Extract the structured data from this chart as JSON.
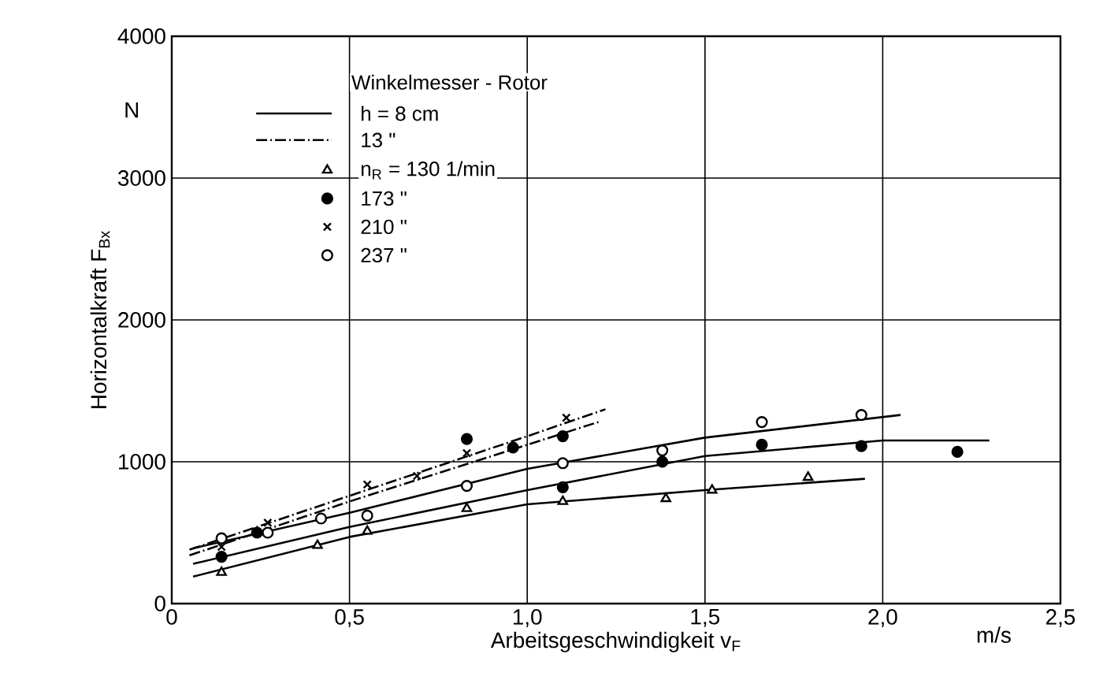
{
  "chart_data": {
    "type": "scatter",
    "xlabel": "Arbeitsgeschwindigkeit v$_{F}$",
    "ylabel": "Horizontalkraft F$_{Bx}$",
    "legend_title": "Winkelmesser - Rotor",
    "xlim": [
      0,
      2.5
    ],
    "ylim": [
      0,
      4000
    ],
    "xticks": [
      0,
      {
        "value": 0.5,
        "label": "0,5"
      },
      {
        "value": 1.0,
        "label": "1,0"
      },
      {
        "value": 1.5,
        "label": "1,5"
      },
      {
        "value": 2.0,
        "label": "2,0"
      },
      {
        "value": 2.5,
        "label": "2,5"
      }
    ],
    "yticks": [
      0,
      1000,
      2000,
      3000,
      4000
    ],
    "grid": true,
    "legend": "top left",
    "annotations": [
      "N",
      "m/s"
    ],
    "series": [
      {
        "name": "h = 8 cm",
        "type": "line",
        "line_style": "solid",
        "color": "#000000",
        "x": [
          0.06,
          0.5,
          1.0,
          1.5,
          2.05
        ],
        "values": [
          390,
          640,
          950,
          1170,
          1330
        ]
      },
      {
        "type": "line",
        "line_style": "solid",
        "color": "#000000",
        "x": [
          0.06,
          0.5,
          1.0,
          1.5,
          2.0,
          2.3
        ],
        "values": [
          280,
          540,
          800,
          1040,
          1150,
          1150
        ]
      },
      {
        "type": "line",
        "line_style": "solid",
        "color": "#000000",
        "x": [
          0.06,
          0.5,
          1.0,
          1.5,
          1.95
        ],
        "values": [
          190,
          470,
          700,
          800,
          880
        ]
      },
      {
        "name": "13 \"",
        "type": "line",
        "line_style": "dashdot",
        "color": "#000000",
        "x": [
          0.05,
          0.5,
          1.0,
          1.22
        ],
        "values": [
          380,
          760,
          1180,
          1370
        ]
      },
      {
        "type": "line",
        "line_style": "dashdot",
        "color": "#000000",
        "x": [
          0.05,
          0.5,
          1.0,
          1.2
        ],
        "values": [
          340,
          720,
          1120,
          1280
        ]
      },
      {
        "name": "n$_{R}$ = 130 1/min",
        "marker": "triangle",
        "color": "#ffffff",
        "x": [
          0.14,
          0.41,
          0.55,
          0.83,
          1.1,
          1.39,
          1.52,
          1.79
        ],
        "values": [
          220,
          410,
          510,
          670,
          720,
          740,
          800,
          890
        ]
      },
      {
        "name": "173 \"",
        "marker": "circle",
        "color": "#000000",
        "x": [
          0.14,
          0.24,
          0.83,
          0.96,
          1.1,
          1.1,
          1.38,
          1.66,
          1.94,
          2.21
        ],
        "values": [
          330,
          500,
          1160,
          1100,
          1180,
          820,
          1000,
          1120,
          1110,
          1070
        ]
      },
      {
        "name": "210 \"",
        "marker": "cross",
        "color": "#000000",
        "x": [
          0.14,
          0.27,
          0.55,
          0.69,
          0.83,
          1.11
        ],
        "values": [
          400,
          570,
          840,
          900,
          1060,
          1310
        ]
      },
      {
        "name": "237 \"",
        "marker": "circle",
        "color": "#ffffff",
        "x": [
          0.14,
          0.27,
          0.42,
          0.55,
          0.83,
          1.1,
          1.38,
          1.66,
          1.94
        ],
        "values": [
          460,
          500,
          600,
          620,
          830,
          990,
          1080,
          1280,
          1330
        ]
      }
    ]
  }
}
